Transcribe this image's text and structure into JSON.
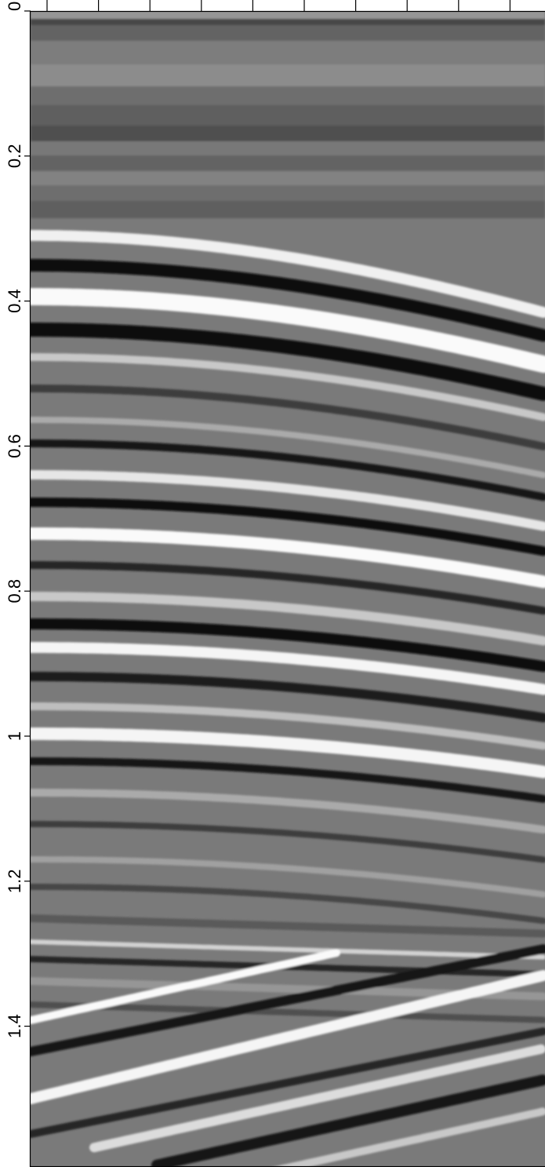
{
  "chart_data": {
    "type": "heatmap",
    "title": "",
    "xlabel": "",
    "ylabel": "",
    "ylim": [
      0,
      1.6
    ],
    "y_ticks": [
      {
        "value": 0,
        "label": "0"
      },
      {
        "value": 0.2,
        "label": "0.2"
      },
      {
        "value": 0.4,
        "label": "0.4"
      },
      {
        "value": 0.6,
        "label": "0.6"
      },
      {
        "value": 0.8,
        "label": "0.8"
      },
      {
        "value": 1.0,
        "label": "1"
      },
      {
        "value": 1.2,
        "label": "1.2"
      },
      {
        "value": 1.4,
        "label": "1.4"
      }
    ],
    "x_tick_count": 10,
    "colormap": "grayscale",
    "grid": false,
    "colors": {
      "background": "#7a7a7a",
      "frame": "#000000",
      "text": "#000000"
    }
  }
}
